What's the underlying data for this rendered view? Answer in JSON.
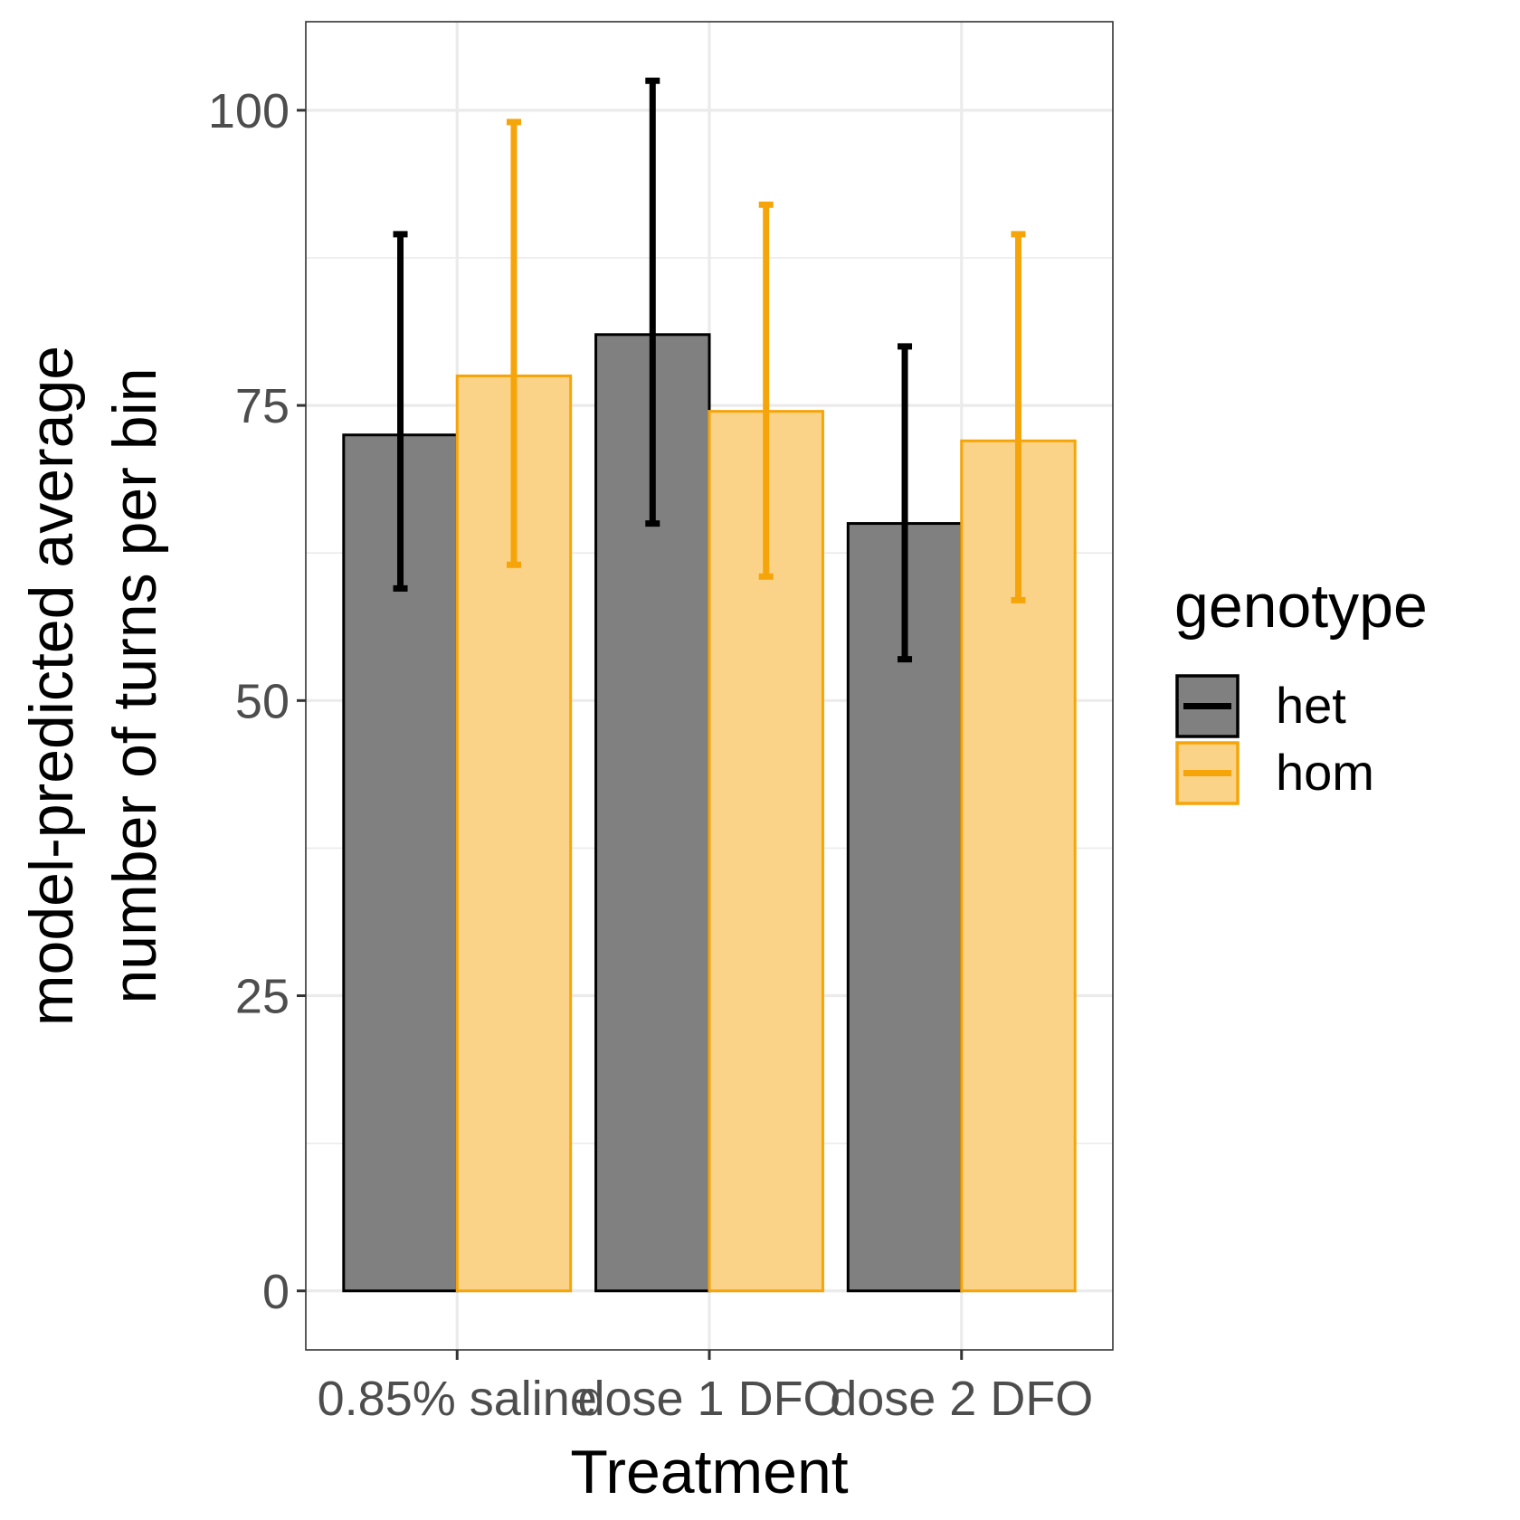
{
  "chart_data": {
    "type": "bar",
    "title": "",
    "xlabel": "Treatment",
    "ylabel_lines": [
      "model-predicted average",
      "number of turns per bin"
    ],
    "categories": [
      "0.85% saline",
      "dose 1 DFO",
      "dose 2 DFO"
    ],
    "y_ticks": [
      0,
      25,
      50,
      75,
      100
    ],
    "ylim": [
      -5,
      107.5
    ],
    "grid": true,
    "legend": {
      "title": "genotype",
      "position": "right"
    },
    "series": [
      {
        "name": "het",
        "fill": "#808080",
        "stroke": "#000000",
        "errorbar_color": "#000000",
        "values": [
          72.5,
          81.0,
          65.0
        ],
        "error_low": [
          59.5,
          65.0,
          53.5
        ],
        "error_high": [
          89.5,
          102.5,
          80.0
        ]
      },
      {
        "name": "hom",
        "fill": "#fbd388",
        "stroke": "#f5a50a",
        "errorbar_color": "#f5a50a",
        "values": [
          77.5,
          74.5,
          72.0
        ],
        "error_low": [
          61.5,
          60.5,
          58.5
        ],
        "error_high": [
          99.0,
          92.0,
          89.5
        ]
      }
    ]
  }
}
